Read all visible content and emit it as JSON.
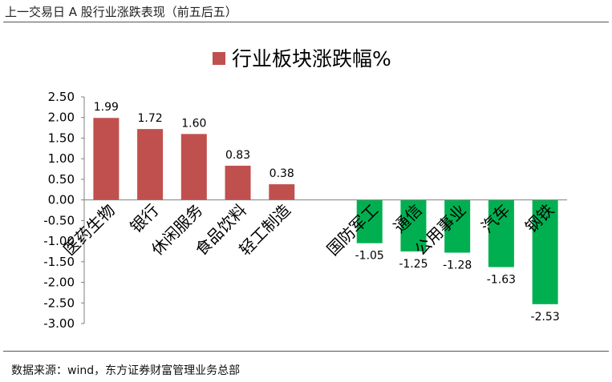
{
  "header": {
    "title": "上一交易日 A 股行业涨跌表现（前五后五）"
  },
  "source": "数据来源：wind，东方证券财富管理业务总部",
  "chart_data": {
    "type": "bar",
    "legend": "行业板块涨跌幅%",
    "legend_position": "top-center",
    "categories": [
      "医药生物",
      "银行",
      "休闲服务",
      "食品饮料",
      "轻工制造",
      "国防军工",
      "通信",
      "公用事业",
      "汽车",
      "钢铁"
    ],
    "values": [
      1.99,
      1.72,
      1.6,
      0.83,
      0.38,
      -1.05,
      -1.25,
      -1.28,
      -1.63,
      -2.53
    ],
    "value_labels": [
      "1.99",
      "1.72",
      "1.60",
      "0.83",
      "0.38",
      "-1.05",
      "-1.25",
      "-1.28",
      "-1.63",
      "-2.53"
    ],
    "y_ticks": [
      "2.50",
      "2.00",
      "1.50",
      "1.00",
      "0.50",
      "0.00",
      "-0.50",
      "-1.00",
      "-1.50",
      "-2.00",
      "-2.50",
      "-3.00"
    ],
    "ylim": [
      -3.0,
      2.5
    ],
    "gap_after_index": 4,
    "colors": {
      "positive": "#c0504d",
      "negative": "#00b050"
    },
    "grid": false
  }
}
